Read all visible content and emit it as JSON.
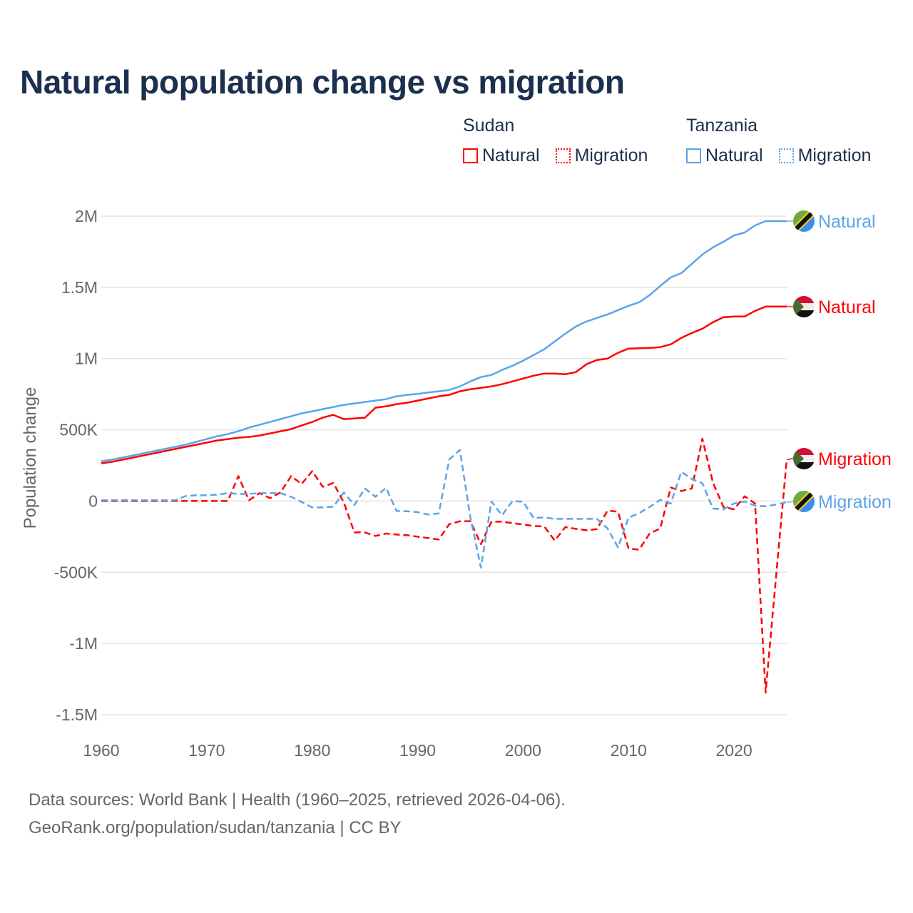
{
  "title": "Natural population change vs migration",
  "legend": {
    "groups": [
      {
        "country": "Sudan",
        "items": [
          {
            "label": "Natural",
            "color": "#ff0000",
            "style": "solid"
          },
          {
            "label": "Migration",
            "color": "#ff0000",
            "style": "dotted"
          }
        ]
      },
      {
        "country": "Tanzania",
        "items": [
          {
            "label": "Natural",
            "color": "#5ba4ea",
            "style": "solid"
          },
          {
            "label": "Migration",
            "color": "#5ba4ea",
            "style": "dotted"
          }
        ]
      }
    ]
  },
  "footer": {
    "line1": "Data sources: World Bank | Health (1960–2025, retrieved 2026-04-06).",
    "line2": "GeoRank.org/population/sudan/tanzania | CC BY"
  },
  "chart_data": {
    "type": "line",
    "title": "Natural population change vs migration",
    "xlabel": "",
    "ylabel": "Population change",
    "xlim": [
      1960,
      2025
    ],
    "ylim": [
      -1500000,
      2000000
    ],
    "x_ticks": [
      1960,
      1970,
      1980,
      1990,
      2000,
      2010,
      2020
    ],
    "x_tick_labels": [
      "1960",
      "1970",
      "1980",
      "1990",
      "2000",
      "2010",
      "2020"
    ],
    "y_ticks": [
      2000000,
      1500000,
      1000000,
      500000,
      0,
      -500000,
      -1000000,
      -1500000
    ],
    "y_tick_labels": [
      "2M",
      "1.5M",
      "1M",
      "500K",
      "0",
      "-500K",
      "-1M",
      "-1.5M"
    ],
    "grid": true,
    "legend_position": "top-right",
    "x_start": 1960,
    "series": [
      {
        "name": "Tanzania Natural",
        "end_label": "Natural",
        "color": "#5ba4ea",
        "dash": false,
        "flag": "tanzania",
        "values": [
          280000,
          290000,
          305000,
          320000,
          335000,
          350000,
          365000,
          380000,
          395000,
          415000,
          435000,
          455000,
          470000,
          490000,
          515000,
          535000,
          555000,
          575000,
          595000,
          615000,
          630000,
          645000,
          660000,
          675000,
          685000,
          695000,
          705000,
          715000,
          735000,
          745000,
          752000,
          762000,
          770000,
          780000,
          805000,
          840000,
          870000,
          885000,
          920000,
          950000,
          985000,
          1025000,
          1065000,
          1120000,
          1175000,
          1225000,
          1260000,
          1285000,
          1310000,
          1340000,
          1370000,
          1395000,
          1445000,
          1510000,
          1570000,
          1600000,
          1665000,
          1730000,
          1780000,
          1820000,
          1865000,
          1885000,
          1935000,
          1965000,
          1965000,
          1965000
        ]
      },
      {
        "name": "Sudan Natural",
        "end_label": "Natural",
        "color": "#ff0000",
        "dash": false,
        "flag": "sudan",
        "values": [
          265000,
          275000,
          290000,
          305000,
          320000,
          335000,
          350000,
          365000,
          380000,
          395000,
          410000,
          425000,
          435000,
          445000,
          450000,
          460000,
          475000,
          490000,
          505000,
          530000,
          555000,
          585000,
          605000,
          575000,
          580000,
          585000,
          655000,
          665000,
          680000,
          690000,
          705000,
          720000,
          735000,
          745000,
          770000,
          785000,
          795000,
          805000,
          820000,
          840000,
          860000,
          880000,
          895000,
          895000,
          890000,
          905000,
          960000,
          990000,
          1000000,
          1040000,
          1070000,
          1072000,
          1075000,
          1080000,
          1100000,
          1145000,
          1180000,
          1210000,
          1255000,
          1290000,
          1295000,
          1295000,
          1335000,
          1365000,
          1365000,
          1365000
        ]
      },
      {
        "name": "Sudan Migration",
        "end_label": "Migration",
        "color": "#ff0000",
        "dash": true,
        "flag": "sudan",
        "values": [
          0,
          0,
          0,
          0,
          0,
          0,
          0,
          0,
          0,
          0,
          0,
          0,
          0,
          175000,
          5000,
          55000,
          20000,
          60000,
          175000,
          120000,
          210000,
          100000,
          127000,
          -10000,
          -220000,
          -220000,
          -245000,
          -228000,
          -235000,
          -240000,
          -250000,
          -260000,
          -270000,
          -162000,
          -142000,
          -142000,
          -303000,
          -145000,
          -145000,
          -155000,
          -165000,
          -175000,
          -178000,
          -278000,
          -183000,
          -195000,
          -205000,
          -197000,
          -67000,
          -75000,
          -333000,
          -342000,
          -228000,
          -192000,
          95000,
          70000,
          88000,
          438000,
          130000,
          -42000,
          -58000,
          33000,
          -17000,
          -1345000,
          -520000,
          292000
        ]
      },
      {
        "name": "Tanzania Migration",
        "end_label": "Migration",
        "color": "#5ba4ea",
        "dash": true,
        "flag": "tanzania",
        "values": [
          5000,
          5000,
          5000,
          5000,
          5000,
          5000,
          5000,
          5000,
          35000,
          40000,
          40000,
          45000,
          55000,
          50000,
          50000,
          55000,
          55000,
          55000,
          30000,
          -7000,
          -45000,
          -45000,
          -40000,
          60000,
          -28000,
          88000,
          30000,
          93000,
          -70000,
          -72000,
          -78000,
          -95000,
          -87000,
          292000,
          358000,
          -117000,
          -467000,
          -3000,
          -100000,
          0,
          -5000,
          -120000,
          -115000,
          -125000,
          -125000,
          -125000,
          -125000,
          -125000,
          -192000,
          -325000,
          -117000,
          -85000,
          -42000,
          8000,
          -17000,
          205000,
          155000,
          125000,
          -53000,
          -58000,
          -17000,
          -3000,
          -33000,
          -37000,
          -25000,
          -8000
        ]
      }
    ]
  }
}
